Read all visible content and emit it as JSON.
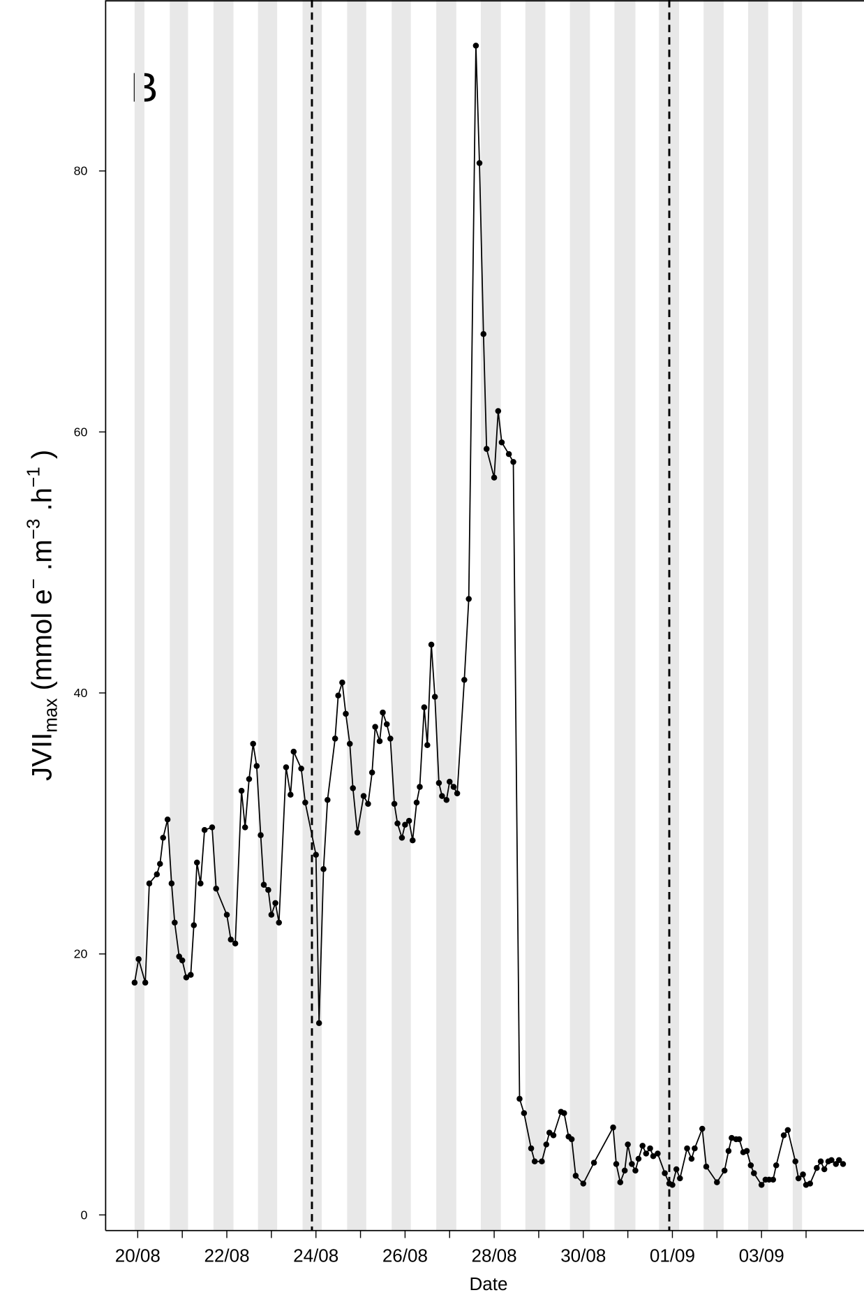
{
  "chart_data": {
    "type": "line",
    "panel_label": "B",
    "xlabel": "Date",
    "ylabel": [
      {
        "text": "JVII"
      },
      {
        "text": "max",
        "shift": "sub"
      },
      {
        "text": " (mmol e"
      },
      {
        "text": "−",
        "shift": "super"
      },
      {
        "text": " .m"
      },
      {
        "text": "−3",
        "shift": "super"
      },
      {
        "text": " .h"
      },
      {
        "text": "−1",
        "shift": "super"
      },
      {
        "text": " )"
      }
    ],
    "color": "#000000",
    "marker": "circle",
    "x": [
      19.93,
      20.02,
      20.17,
      20.26,
      20.43,
      20.5,
      20.57,
      20.67,
      20.76,
      20.83,
      20.93,
      21.0,
      21.09,
      21.19,
      21.26,
      21.33,
      21.41,
      21.5,
      21.67,
      21.76,
      22.0,
      22.09,
      22.19,
      22.33,
      22.41,
      22.5,
      22.59,
      22.67,
      22.76,
      22.83,
      22.93,
      23.0,
      23.09,
      23.17,
      23.33,
      23.43,
      23.5,
      23.67,
      23.76,
      24.0,
      24.07,
      24.17,
      24.26,
      24.43,
      24.5,
      24.59,
      24.67,
      24.76,
      24.83,
      24.93,
      25.07,
      25.17,
      25.26,
      25.33,
      25.43,
      25.5,
      25.59,
      25.67,
      25.76,
      25.83,
      25.93,
      26.0,
      26.09,
      26.17,
      26.26,
      26.33,
      26.43,
      26.5,
      26.59,
      26.67,
      26.76,
      26.83,
      26.93,
      27.0,
      27.09,
      27.17,
      27.33,
      27.43,
      27.59,
      27.67,
      27.76,
      27.83,
      28.0,
      28.09,
      28.17,
      28.33,
      28.43,
      28.57,
      28.67,
      28.83,
      28.91,
      29.07,
      29.17,
      29.24,
      29.33,
      29.5,
      29.57,
      29.67,
      29.74,
      29.83,
      30.0,
      30.24,
      30.67,
      30.74,
      30.83,
      30.93,
      31.0,
      31.09,
      31.17,
      31.24,
      31.33,
      31.41,
      31.5,
      31.57,
      31.67,
      31.83,
      31.93,
      32.0,
      32.09,
      32.17,
      32.33,
      32.43,
      32.5,
      32.67,
      32.76,
      33.0,
      33.17,
      33.26,
      33.33,
      33.43,
      33.5,
      33.59,
      33.67,
      33.76,
      33.83,
      34.0,
      34.09,
      34.17,
      34.26,
      34.33,
      34.5,
      34.59,
      34.76,
      34.83,
      34.93,
      35.0,
      35.09,
      35.24,
      35.33,
      35.41,
      35.5,
      35.57,
      35.67,
      35.74,
      35.83
    ],
    "values": [
      17.8,
      19.6,
      17.8,
      25.4,
      26.1,
      26.9,
      28.9,
      30.3,
      25.4,
      22.4,
      19.8,
      19.5,
      18.2,
      18.4,
      22.2,
      27.0,
      25.4,
      29.5,
      29.7,
      25.0,
      23.0,
      21.1,
      20.8,
      32.5,
      29.7,
      33.4,
      36.1,
      34.4,
      29.1,
      25.3,
      24.9,
      23.0,
      23.9,
      22.4,
      34.3,
      32.2,
      35.5,
      34.2,
      31.6,
      27.6,
      14.7,
      26.5,
      31.8,
      36.5,
      39.8,
      40.8,
      38.4,
      36.1,
      32.7,
      29.3,
      32.1,
      31.5,
      33.9,
      37.4,
      36.3,
      38.5,
      37.6,
      36.5,
      31.5,
      30.0,
      28.9,
      29.9,
      30.2,
      28.7,
      31.6,
      32.8,
      38.9,
      36.0,
      43.7,
      39.7,
      33.1,
      32.1,
      31.8,
      33.2,
      32.8,
      32.3,
      41.0,
      47.2,
      89.6,
      80.6,
      67.5,
      58.7,
      56.5,
      61.6,
      59.2,
      58.3,
      57.7,
      8.9,
      7.8,
      5.1,
      4.1,
      4.1,
      5.4,
      6.3,
      6.1,
      7.9,
      7.8,
      6.0,
      5.8,
      3.0,
      2.4,
      4.0,
      6.7,
      3.9,
      2.5,
      3.4,
      5.4,
      3.9,
      3.4,
      4.3,
      5.3,
      4.7,
      5.1,
      4.5,
      4.7,
      3.2,
      2.4,
      2.3,
      3.5,
      2.8,
      5.1,
      4.3,
      5.1,
      6.6,
      3.7,
      2.5,
      3.4,
      4.9,
      5.9,
      5.8,
      5.8,
      4.8,
      4.9,
      3.8,
      3.2,
      2.3,
      2.7,
      2.7,
      2.7,
      3.8,
      6.1,
      6.5,
      4.1,
      2.8,
      3.1,
      2.3,
      2.4,
      3.6,
      4.1,
      3.5,
      4.1,
      4.2,
      3.9,
      4.2,
      3.9
    ],
    "xlim": [
      19.28,
      36.3
    ],
    "ylim": [
      -1.2,
      93.1
    ],
    "xticks": [
      {
        "value": 20,
        "label": "20/08"
      },
      {
        "value": 21,
        "label": null
      },
      {
        "value": 22,
        "label": "22/08"
      },
      {
        "value": 23,
        "label": null
      },
      {
        "value": 24,
        "label": "24/08"
      },
      {
        "value": 25,
        "label": null
      },
      {
        "value": 26,
        "label": "26/08"
      },
      {
        "value": 27,
        "label": null
      },
      {
        "value": 28,
        "label": "28/08"
      },
      {
        "value": 29,
        "label": null
      },
      {
        "value": 30,
        "label": "30/08"
      },
      {
        "value": 31,
        "label": null
      },
      {
        "value": 32,
        "label": "01/09"
      },
      {
        "value": 33,
        "label": null
      },
      {
        "value": 34,
        "label": "03/09"
      },
      {
        "value": 35,
        "label": null
      }
    ],
    "yticks": [
      0,
      20,
      40,
      60,
      80
    ],
    "shaded": [
      [
        19.93,
        20.15
      ],
      [
        20.72,
        21.13
      ],
      [
        21.7,
        22.15
      ],
      [
        22.7,
        23.13
      ],
      [
        23.7,
        24.13
      ],
      [
        24.7,
        25.13
      ],
      [
        25.7,
        26.13
      ],
      [
        26.7,
        27.15
      ],
      [
        27.7,
        28.15
      ],
      [
        28.7,
        29.15
      ],
      [
        29.7,
        30.15
      ],
      [
        30.7,
        31.17
      ],
      [
        31.7,
        32.15
      ],
      [
        32.7,
        33.15
      ],
      [
        33.7,
        34.15
      ],
      [
        34.7,
        34.91
      ]
    ],
    "shade_color": "#e8e8e8",
    "vlines": [
      23.91,
      31.93
    ]
  }
}
